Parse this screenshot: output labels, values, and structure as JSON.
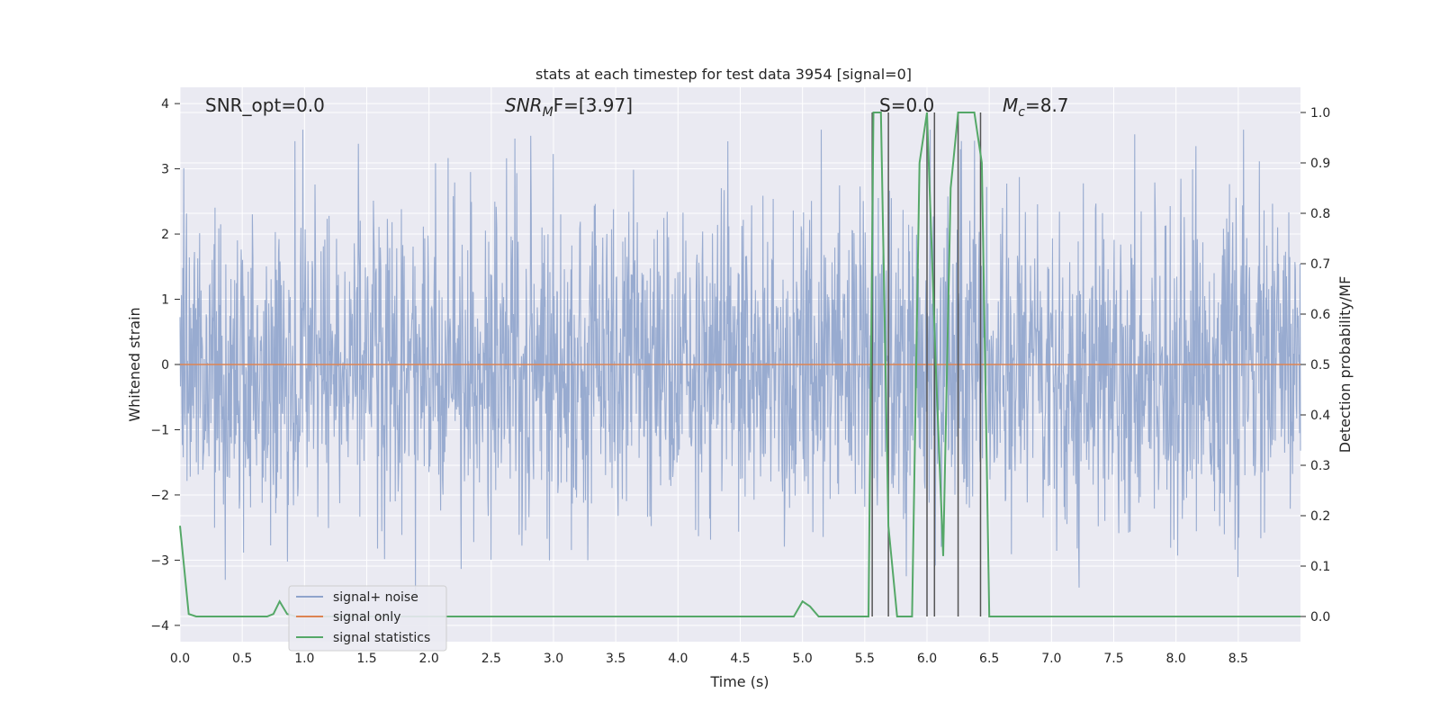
{
  "chart_data": {
    "type": "line",
    "title": "stats at each timestep for test data 3954 [signal=0]",
    "xlabel": "Time (s)",
    "ylabel_left": "Whitened strain",
    "ylabel_right": "Detection probability/MF",
    "xlim": [
      0,
      9
    ],
    "ylim_left": [
      -4.25,
      4.25
    ],
    "ylim_right": [
      -0.05,
      1.05
    ],
    "grid": true,
    "legend_location": "lower-left",
    "x_ticks": [
      "0.0",
      "0.5",
      "1.0",
      "1.5",
      "2.0",
      "2.5",
      "3.0",
      "3.5",
      "4.0",
      "4.5",
      "5.0",
      "5.5",
      "6.0",
      "6.5",
      "7.0",
      "7.5",
      "8.0",
      "8.5"
    ],
    "y_left_ticks": [
      "−4",
      "−3",
      "−2",
      "−1",
      "0",
      "1",
      "2",
      "3",
      "4"
    ],
    "y_right_ticks": [
      "0.0",
      "0.1",
      "0.2",
      "0.3",
      "0.4",
      "0.5",
      "0.6",
      "0.7",
      "0.8",
      "0.9",
      "1.0"
    ],
    "annotations": {
      "snr_opt": "SNR_opt=0.0",
      "snr_mf_prefix": "SNR",
      "snr_mf_sub": "M",
      "snr_mf_suffix": "F=[3.97]",
      "s_label": "S=0.0",
      "mc_prefix": "M",
      "mc_sub": "c",
      "mc_suffix": "=8.7"
    },
    "series": [
      {
        "name": "signal+ noise",
        "axis": "left",
        "color": "#8fa4cc",
        "description": "whitened strain noise, roughly Gaussian with peaks near ±3.5",
        "envelope_typical": 1.5,
        "envelope_peak": 3.6
      },
      {
        "name": "signal only",
        "axis": "left",
        "color": "#dd8452",
        "x": [
          0,
          9
        ],
        "y": [
          0,
          0
        ]
      },
      {
        "name": "signal statistics",
        "axis": "right",
        "color": "#55a868",
        "x": [
          0.0,
          0.07,
          0.13,
          0.7,
          0.75,
          0.8,
          0.86,
          0.93,
          4.93,
          5.0,
          5.06,
          5.13,
          5.53,
          5.57,
          5.63,
          5.69,
          5.76,
          5.82,
          5.88,
          5.94,
          6.0,
          6.07,
          6.13,
          6.19,
          6.25,
          6.32,
          6.38,
          6.44,
          6.5,
          6.57,
          6.63,
          9.0
        ],
        "y": [
          0.18,
          0.005,
          0.0,
          0.0,
          0.005,
          0.03,
          0.005,
          0.0,
          0.0,
          0.03,
          0.02,
          0.0,
          0.0,
          1.0,
          1.0,
          0.18,
          0.0,
          0.0,
          0.0,
          0.9,
          1.0,
          0.5,
          0.12,
          0.85,
          1.0,
          1.0,
          1.0,
          0.9,
          0.0,
          0.0,
          0.0,
          0.0
        ]
      }
    ],
    "vertical_markers": {
      "color": "#555555",
      "x": [
        5.56,
        5.69,
        6.0,
        6.06,
        6.25,
        6.43
      ]
    }
  }
}
